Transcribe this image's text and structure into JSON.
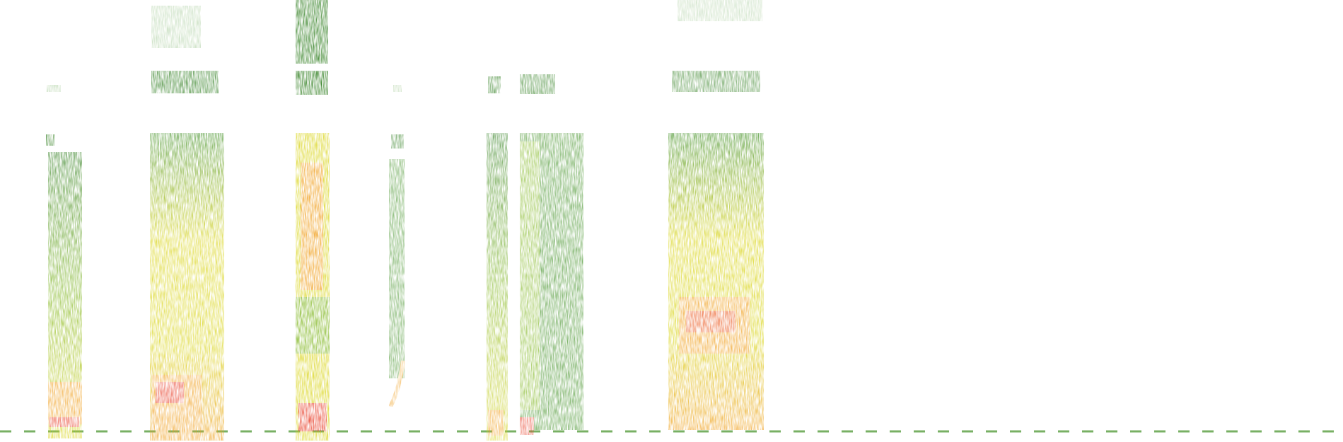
{
  "image": {
    "kind": "spectrogram",
    "background": "#ffffff",
    "palette": [
      "#2e7d1e",
      "#3f8f23",
      "#7fb51f",
      "#d9d41a",
      "#f0a020",
      "#e8402a"
    ]
  },
  "segments": [
    {
      "id": "call-1",
      "intensity": 0.55
    },
    {
      "id": "call-2",
      "intensity": 0.6
    },
    {
      "id": "call-3",
      "intensity": 0.8
    },
    {
      "id": "call-4",
      "intensity": 0.35
    },
    {
      "id": "call-5",
      "intensity": 0.5
    },
    {
      "id": "call-6",
      "intensity": 0.45
    },
    {
      "id": "call-7",
      "intensity": 0.65
    }
  ]
}
